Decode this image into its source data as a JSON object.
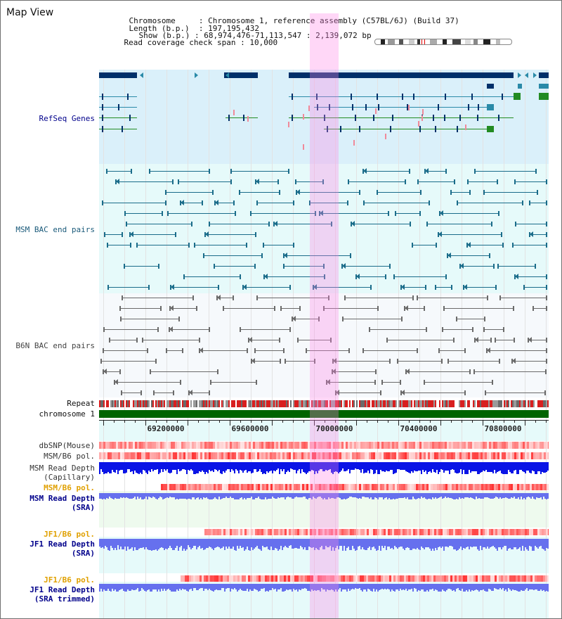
{
  "view_title": "Map View",
  "info": {
    "chromosome_label": "Chromosome",
    "chromosome_value": "Chromosome 1, reference assembly (C57BL/6J) (Build 37)",
    "length_label": "Length (b.p.)",
    "length_value": "197,195,432",
    "show_label": "Show (b.p.)",
    "show_value": "68,974,476-71,113,547 : 2,139,072 bp",
    "coverage_label": "Read coverage check span",
    "coverage_value": "10,000"
  },
  "tracks": {
    "refseq": "RefSeq Genes",
    "msm_bac": "MSM BAC end pairs",
    "b6n_bac": "B6N BAC end pairs",
    "repeat": "Repeat",
    "chromosome": "chromosome 1",
    "dbsnp": "dbSNP(Mouse)",
    "msm_b6_pol_1": "MSM/B6 pol.",
    "msm_depth_cap": "MSM Read Depth\n(Capillary)",
    "msm_b6_pol_2": "MSM/B6 pol.",
    "msm_depth_sra": "MSM Read Depth\n(SRA)",
    "jf1_b6_pol_1": "JF1/B6 pol.",
    "jf1_depth_sra": "JF1 Read Depth\n(SRA)",
    "jf1_b6_pol_2": "JF1/B6 pol.",
    "jf1_depth_trim": "JF1 Read Depth\n(SRA trimmed)"
  },
  "scale_ticks": [
    "69200000",
    "69600000",
    "70000000",
    "70400000",
    "70800000"
  ],
  "colors": {
    "refseq_bg": "#daf0fa",
    "msm_bg": "#e6fafa",
    "b6n_bg": "#f4f8fc",
    "highlight": "#ffb0ee",
    "chromosome_bar": "#006400",
    "gene_dark": "#00306a",
    "gene_teal": "#2a8aa8",
    "gene_green": "#228b22",
    "msm_pair": "#1a6c8a",
    "b6n_pair": "#6a6a6a",
    "capillary_depth": "#0a14e6",
    "sra_depth": "#6670ee",
    "pol_red": "#e8202a",
    "label_blue": "#00008b",
    "label_orange": "#e0a000"
  }
}
